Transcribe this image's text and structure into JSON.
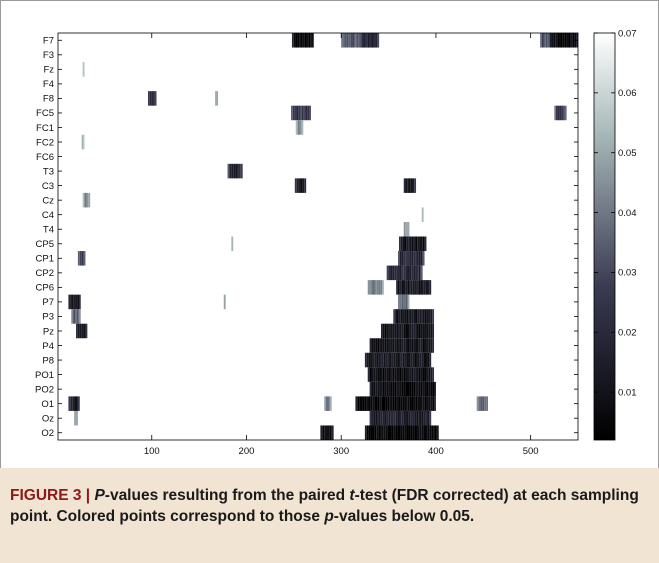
{
  "chart_data": {
    "type": "heatmap",
    "title": "",
    "xlabel": "",
    "ylabel": "",
    "xlim": [
      1,
      550
    ],
    "xticks": [
      100,
      200,
      300,
      400,
      500
    ],
    "channels": [
      "F7",
      "F3",
      "Fz",
      "F4",
      "F8",
      "FC5",
      "FC1",
      "FC2",
      "FC6",
      "T3",
      "C3",
      "Cz",
      "C4",
      "T4",
      "CP5",
      "CP1",
      "CP2",
      "CP6",
      "P7",
      "P3",
      "Pz",
      "P4",
      "P8",
      "PO1",
      "PO2",
      "O1",
      "Oz",
      "O2"
    ],
    "colorbar": {
      "min": 0.002,
      "max": 0.07,
      "ticks": [
        "0.07",
        "0.06",
        "0.05",
        "0.04",
        "0.03",
        "0.02",
        "0.01"
      ],
      "tick_values": [
        0.07,
        0.06,
        0.05,
        0.04,
        0.03,
        0.02,
        0.01
      ],
      "colormap": "bone"
    },
    "background_value": 0.07,
    "significant_segments": [
      {
        "ch": "F7",
        "start": 248,
        "end": 271,
        "p": 0.004
      },
      {
        "ch": "F7",
        "start": 300,
        "end": 340,
        "p": 0.035
      },
      {
        "ch": "F7",
        "start": 320,
        "end": 340,
        "p": 0.02
      },
      {
        "ch": "F7",
        "start": 510,
        "end": 520,
        "p": 0.03
      },
      {
        "ch": "F7",
        "start": 520,
        "end": 550,
        "p": 0.006
      },
      {
        "ch": "Fz",
        "start": 27,
        "end": 29,
        "p": 0.055
      },
      {
        "ch": "F8",
        "start": 96,
        "end": 105,
        "p": 0.02
      },
      {
        "ch": "F8",
        "start": 167,
        "end": 170,
        "p": 0.05
      },
      {
        "ch": "FC5",
        "start": 247,
        "end": 268,
        "p": 0.025
      },
      {
        "ch": "FC5",
        "start": 525,
        "end": 538,
        "p": 0.025
      },
      {
        "ch": "FC1",
        "start": 252,
        "end": 260,
        "p": 0.04
      },
      {
        "ch": "FC2",
        "start": 26,
        "end": 29,
        "p": 0.055
      },
      {
        "ch": "T3",
        "start": 180,
        "end": 196,
        "p": 0.018
      },
      {
        "ch": "C3",
        "start": 251,
        "end": 263,
        "p": 0.012
      },
      {
        "ch": "C3",
        "start": 366,
        "end": 379,
        "p": 0.012
      },
      {
        "ch": "Cz",
        "start": 27,
        "end": 35,
        "p": 0.04
      },
      {
        "ch": "C4",
        "start": 385,
        "end": 387,
        "p": 0.055
      },
      {
        "ch": "T4",
        "start": 366,
        "end": 372,
        "p": 0.045
      },
      {
        "ch": "CP5",
        "start": 184,
        "end": 186,
        "p": 0.055
      },
      {
        "ch": "CP5",
        "start": 361,
        "end": 390,
        "p": 0.01
      },
      {
        "ch": "CP1",
        "start": 22,
        "end": 30,
        "p": 0.025
      },
      {
        "ch": "CP1",
        "start": 360,
        "end": 388,
        "p": 0.02
      },
      {
        "ch": "CP2",
        "start": 348,
        "end": 386,
        "p": 0.02
      },
      {
        "ch": "CP6",
        "start": 328,
        "end": 345,
        "p": 0.04
      },
      {
        "ch": "CP6",
        "start": 358,
        "end": 395,
        "p": 0.012
      },
      {
        "ch": "P7",
        "start": 12,
        "end": 25,
        "p": 0.008
      },
      {
        "ch": "P7",
        "start": 176,
        "end": 178,
        "p": 0.055
      },
      {
        "ch": "P7",
        "start": 360,
        "end": 372,
        "p": 0.035
      },
      {
        "ch": "P3",
        "start": 15,
        "end": 25,
        "p": 0.035
      },
      {
        "ch": "P3",
        "start": 355,
        "end": 398,
        "p": 0.012
      },
      {
        "ch": "Pz",
        "start": 20,
        "end": 32,
        "p": 0.01
      },
      {
        "ch": "Pz",
        "start": 342,
        "end": 398,
        "p": 0.01
      },
      {
        "ch": "P4",
        "start": 330,
        "end": 398,
        "p": 0.01
      },
      {
        "ch": "P8",
        "start": 325,
        "end": 395,
        "p": 0.012
      },
      {
        "ch": "PO1",
        "start": 328,
        "end": 398,
        "p": 0.008
      },
      {
        "ch": "PO2",
        "start": 330,
        "end": 400,
        "p": 0.006
      },
      {
        "ch": "O1",
        "start": 12,
        "end": 24,
        "p": 0.012
      },
      {
        "ch": "O1",
        "start": 282,
        "end": 290,
        "p": 0.04
      },
      {
        "ch": "O1",
        "start": 315,
        "end": 400,
        "p": 0.004
      },
      {
        "ch": "O1",
        "start": 443,
        "end": 455,
        "p": 0.035
      },
      {
        "ch": "Oz",
        "start": 18,
        "end": 22,
        "p": 0.045
      },
      {
        "ch": "Oz",
        "start": 330,
        "end": 395,
        "p": 0.015
      },
      {
        "ch": "O2",
        "start": 278,
        "end": 292,
        "p": 0.01
      },
      {
        "ch": "O2",
        "start": 325,
        "end": 403,
        "p": 0.003
      }
    ]
  },
  "caption": {
    "prefix": "FIGURE 3 | ",
    "p1": "P",
    "t1": "-values resulting from the paired ",
    "t2": "t",
    "t3": "-test (FDR corrected) at each sampling point. Colored points correspond to those ",
    "p2": "p",
    "t4": "-values below 0.05."
  }
}
